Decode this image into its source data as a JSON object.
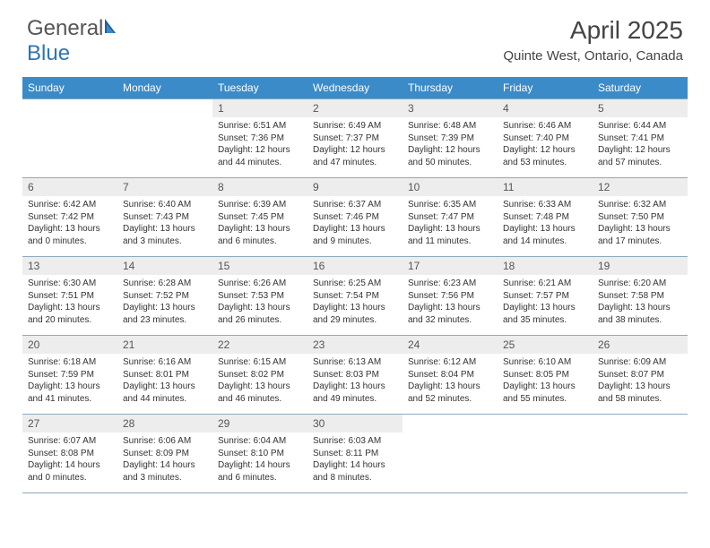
{
  "brand": {
    "part1": "General",
    "part2": "Blue"
  },
  "title": "April 2025",
  "location": "Quinte West, Ontario, Canada",
  "colors": {
    "header_bg": "#3b8bc9",
    "daynum_bg": "#ededed",
    "border": "#8faabc",
    "text": "#333333",
    "brand_gray": "#555555",
    "brand_blue": "#2e75b6"
  },
  "day_headers": [
    "Sunday",
    "Monday",
    "Tuesday",
    "Wednesday",
    "Thursday",
    "Friday",
    "Saturday"
  ],
  "weeks": [
    [
      {
        "n": "",
        "sunrise": "",
        "sunset": "",
        "daylight": ""
      },
      {
        "n": "",
        "sunrise": "",
        "sunset": "",
        "daylight": ""
      },
      {
        "n": "1",
        "sunrise": "Sunrise: 6:51 AM",
        "sunset": "Sunset: 7:36 PM",
        "daylight": "Daylight: 12 hours and 44 minutes."
      },
      {
        "n": "2",
        "sunrise": "Sunrise: 6:49 AM",
        "sunset": "Sunset: 7:37 PM",
        "daylight": "Daylight: 12 hours and 47 minutes."
      },
      {
        "n": "3",
        "sunrise": "Sunrise: 6:48 AM",
        "sunset": "Sunset: 7:39 PM",
        "daylight": "Daylight: 12 hours and 50 minutes."
      },
      {
        "n": "4",
        "sunrise": "Sunrise: 6:46 AM",
        "sunset": "Sunset: 7:40 PM",
        "daylight": "Daylight: 12 hours and 53 minutes."
      },
      {
        "n": "5",
        "sunrise": "Sunrise: 6:44 AM",
        "sunset": "Sunset: 7:41 PM",
        "daylight": "Daylight: 12 hours and 57 minutes."
      }
    ],
    [
      {
        "n": "6",
        "sunrise": "Sunrise: 6:42 AM",
        "sunset": "Sunset: 7:42 PM",
        "daylight": "Daylight: 13 hours and 0 minutes."
      },
      {
        "n": "7",
        "sunrise": "Sunrise: 6:40 AM",
        "sunset": "Sunset: 7:43 PM",
        "daylight": "Daylight: 13 hours and 3 minutes."
      },
      {
        "n": "8",
        "sunrise": "Sunrise: 6:39 AM",
        "sunset": "Sunset: 7:45 PM",
        "daylight": "Daylight: 13 hours and 6 minutes."
      },
      {
        "n": "9",
        "sunrise": "Sunrise: 6:37 AM",
        "sunset": "Sunset: 7:46 PM",
        "daylight": "Daylight: 13 hours and 9 minutes."
      },
      {
        "n": "10",
        "sunrise": "Sunrise: 6:35 AM",
        "sunset": "Sunset: 7:47 PM",
        "daylight": "Daylight: 13 hours and 11 minutes."
      },
      {
        "n": "11",
        "sunrise": "Sunrise: 6:33 AM",
        "sunset": "Sunset: 7:48 PM",
        "daylight": "Daylight: 13 hours and 14 minutes."
      },
      {
        "n": "12",
        "sunrise": "Sunrise: 6:32 AM",
        "sunset": "Sunset: 7:50 PM",
        "daylight": "Daylight: 13 hours and 17 minutes."
      }
    ],
    [
      {
        "n": "13",
        "sunrise": "Sunrise: 6:30 AM",
        "sunset": "Sunset: 7:51 PM",
        "daylight": "Daylight: 13 hours and 20 minutes."
      },
      {
        "n": "14",
        "sunrise": "Sunrise: 6:28 AM",
        "sunset": "Sunset: 7:52 PM",
        "daylight": "Daylight: 13 hours and 23 minutes."
      },
      {
        "n": "15",
        "sunrise": "Sunrise: 6:26 AM",
        "sunset": "Sunset: 7:53 PM",
        "daylight": "Daylight: 13 hours and 26 minutes."
      },
      {
        "n": "16",
        "sunrise": "Sunrise: 6:25 AM",
        "sunset": "Sunset: 7:54 PM",
        "daylight": "Daylight: 13 hours and 29 minutes."
      },
      {
        "n": "17",
        "sunrise": "Sunrise: 6:23 AM",
        "sunset": "Sunset: 7:56 PM",
        "daylight": "Daylight: 13 hours and 32 minutes."
      },
      {
        "n": "18",
        "sunrise": "Sunrise: 6:21 AM",
        "sunset": "Sunset: 7:57 PM",
        "daylight": "Daylight: 13 hours and 35 minutes."
      },
      {
        "n": "19",
        "sunrise": "Sunrise: 6:20 AM",
        "sunset": "Sunset: 7:58 PM",
        "daylight": "Daylight: 13 hours and 38 minutes."
      }
    ],
    [
      {
        "n": "20",
        "sunrise": "Sunrise: 6:18 AM",
        "sunset": "Sunset: 7:59 PM",
        "daylight": "Daylight: 13 hours and 41 minutes."
      },
      {
        "n": "21",
        "sunrise": "Sunrise: 6:16 AM",
        "sunset": "Sunset: 8:01 PM",
        "daylight": "Daylight: 13 hours and 44 minutes."
      },
      {
        "n": "22",
        "sunrise": "Sunrise: 6:15 AM",
        "sunset": "Sunset: 8:02 PM",
        "daylight": "Daylight: 13 hours and 46 minutes."
      },
      {
        "n": "23",
        "sunrise": "Sunrise: 6:13 AM",
        "sunset": "Sunset: 8:03 PM",
        "daylight": "Daylight: 13 hours and 49 minutes."
      },
      {
        "n": "24",
        "sunrise": "Sunrise: 6:12 AM",
        "sunset": "Sunset: 8:04 PM",
        "daylight": "Daylight: 13 hours and 52 minutes."
      },
      {
        "n": "25",
        "sunrise": "Sunrise: 6:10 AM",
        "sunset": "Sunset: 8:05 PM",
        "daylight": "Daylight: 13 hours and 55 minutes."
      },
      {
        "n": "26",
        "sunrise": "Sunrise: 6:09 AM",
        "sunset": "Sunset: 8:07 PM",
        "daylight": "Daylight: 13 hours and 58 minutes."
      }
    ],
    [
      {
        "n": "27",
        "sunrise": "Sunrise: 6:07 AM",
        "sunset": "Sunset: 8:08 PM",
        "daylight": "Daylight: 14 hours and 0 minutes."
      },
      {
        "n": "28",
        "sunrise": "Sunrise: 6:06 AM",
        "sunset": "Sunset: 8:09 PM",
        "daylight": "Daylight: 14 hours and 3 minutes."
      },
      {
        "n": "29",
        "sunrise": "Sunrise: 6:04 AM",
        "sunset": "Sunset: 8:10 PM",
        "daylight": "Daylight: 14 hours and 6 minutes."
      },
      {
        "n": "30",
        "sunrise": "Sunrise: 6:03 AM",
        "sunset": "Sunset: 8:11 PM",
        "daylight": "Daylight: 14 hours and 8 minutes."
      },
      {
        "n": "",
        "sunrise": "",
        "sunset": "",
        "daylight": ""
      },
      {
        "n": "",
        "sunrise": "",
        "sunset": "",
        "daylight": ""
      },
      {
        "n": "",
        "sunrise": "",
        "sunset": "",
        "daylight": ""
      }
    ]
  ]
}
